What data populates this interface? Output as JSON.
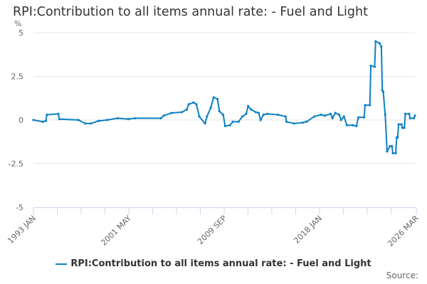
{
  "chart_data": {
    "type": "line",
    "title": "RPI:Contribution to all items annual rate: - Fuel and Light",
    "ylabel": "%",
    "xlabel": "",
    "ylim": [
      -5,
      5
    ],
    "yticks": [
      "5",
      "2.5",
      "0",
      "-2.5",
      "-5"
    ],
    "ytick_values": [
      5,
      2.5,
      0,
      -2.5,
      -5
    ],
    "xrange": [
      "1993-01",
      "2026-03"
    ],
    "xtick_labels": [
      "1993 JAN",
      "2001 MAY",
      "2009 SEP",
      "2018 JAN",
      "2026 MAR"
    ],
    "grid": "horizontal",
    "legend_position": "bottom",
    "color": "#0d80c4",
    "series": [
      {
        "name": "RPI:Contribution to all items annual rate: - Fuel and Light",
        "points": [
          [
            "1993-01",
            0
          ],
          [
            "1993-11",
            -0.1
          ],
          [
            "1994-02",
            -0.05
          ],
          [
            "1994-03",
            0.3
          ],
          [
            "1995-03",
            0.35
          ],
          [
            "1995-04",
            0.05
          ],
          [
            "1996-12",
            0
          ],
          [
            "1997-07",
            -0.2
          ],
          [
            "1998-01",
            -0.2
          ],
          [
            "1998-09",
            -0.05
          ],
          [
            "1999-06",
            0
          ],
          [
            "2000-05",
            0.1
          ],
          [
            "2001-04",
            0.05
          ],
          [
            "2001-11",
            0.1
          ],
          [
            "2004-02",
            0.1
          ],
          [
            "2004-05",
            0.25
          ],
          [
            "2005-01",
            0.4
          ],
          [
            "2005-12",
            0.45
          ],
          [
            "2006-05",
            0.6
          ],
          [
            "2006-07",
            0.9
          ],
          [
            "2006-12",
            1.0
          ],
          [
            "2007-03",
            0.9
          ],
          [
            "2007-06",
            0.2
          ],
          [
            "2007-12",
            -0.2
          ],
          [
            "2008-02",
            0.2
          ],
          [
            "2008-06",
            0.7
          ],
          [
            "2008-09",
            1.3
          ],
          [
            "2009-01",
            1.2
          ],
          [
            "2009-03",
            0.5
          ],
          [
            "2009-07",
            0.3
          ],
          [
            "2009-09",
            -0.35
          ],
          [
            "2010-02",
            -0.3
          ],
          [
            "2010-05",
            -0.1
          ],
          [
            "2010-11",
            -0.1
          ],
          [
            "2011-03",
            0.2
          ],
          [
            "2011-07",
            0.35
          ],
          [
            "2011-09",
            0.8
          ],
          [
            "2011-12",
            0.6
          ],
          [
            "2012-05",
            0.45
          ],
          [
            "2012-08",
            0.4
          ],
          [
            "2012-10",
            0
          ],
          [
            "2013-01",
            0.3
          ],
          [
            "2013-05",
            0.35
          ],
          [
            "2014-04",
            0.3
          ],
          [
            "2014-12",
            0.2
          ],
          [
            "2015-01",
            -0.1
          ],
          [
            "2015-09",
            -0.2
          ],
          [
            "2016-06",
            -0.15
          ],
          [
            "2016-10",
            -0.1
          ],
          [
            "2017-06",
            0.2
          ],
          [
            "2018-01",
            0.3
          ],
          [
            "2018-05",
            0.25
          ],
          [
            "2018-11",
            0.35
          ],
          [
            "2019-01",
            0.1
          ],
          [
            "2019-04",
            0.4
          ],
          [
            "2019-08",
            0.3
          ],
          [
            "2019-10",
            0
          ],
          [
            "2020-01",
            0.2
          ],
          [
            "2020-04",
            -0.3
          ],
          [
            "2020-10",
            -0.3
          ],
          [
            "2021-02",
            -0.35
          ],
          [
            "2021-04",
            0.15
          ],
          [
            "2021-10",
            0.15
          ],
          [
            "2021-11",
            0.85
          ],
          [
            "2022-04",
            0.85
          ],
          [
            "2022-05",
            3.1
          ],
          [
            "2022-09",
            3.05
          ],
          [
            "2022-10",
            4.5
          ],
          [
            "2023-02",
            4.4
          ],
          [
            "2023-04",
            4.2
          ],
          [
            "2023-05",
            1.7
          ],
          [
            "2023-06",
            1.6
          ],
          [
            "2023-08",
            0.3
          ],
          [
            "2023-10",
            -1.8
          ],
          [
            "2024-01",
            -1.5
          ],
          [
            "2024-03",
            -1.5
          ],
          [
            "2024-04",
            -1.9
          ],
          [
            "2024-07",
            -1.9
          ],
          [
            "2024-08",
            -1.0
          ],
          [
            "2024-09",
            -1.0
          ],
          [
            "2024-10",
            -0.25
          ],
          [
            "2025-01",
            -0.25
          ],
          [
            "2025-02",
            -0.45
          ],
          [
            "2025-04",
            -0.45
          ],
          [
            "2025-05",
            0.35
          ],
          [
            "2025-09",
            0.35
          ],
          [
            "2025-10",
            0.1
          ],
          [
            "2026-02",
            0.1
          ],
          [
            "2026-03",
            0.25
          ]
        ]
      }
    ]
  },
  "legend": {
    "label": "RPI:Contribution to all items annual rate: - Fuel and Light"
  },
  "source": {
    "label": "Source:"
  }
}
